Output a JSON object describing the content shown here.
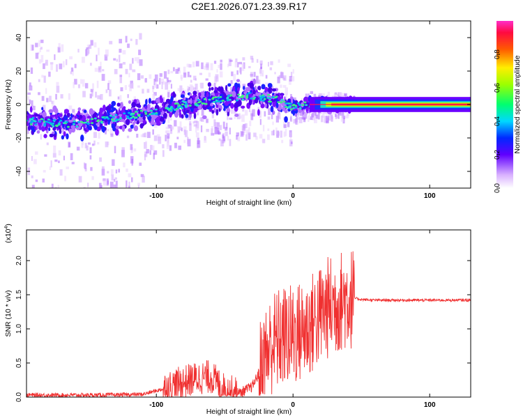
{
  "title": "C2E1.2026.071.23.39.R17",
  "chart_data": [
    {
      "type": "heatmap",
      "name": "spectrogram",
      "xlabel": "Height of straight line (km)",
      "ylabel": "Frequency (Hz)",
      "xlim": [
        -195,
        130
      ],
      "ylim": [
        -50,
        50
      ],
      "xticks": [
        -100,
        0,
        100
      ],
      "yticks": [
        -40,
        -20,
        0,
        20,
        40
      ],
      "colorbar": {
        "label": "Normalized spectral amplitude",
        "range": [
          0,
          1
        ],
        "ticks": [
          0.0,
          0.2,
          0.4,
          0.6,
          0.8
        ]
      },
      "description_series": {
        "name": "dominant frequency trend",
        "x": [
          -190,
          -160,
          -130,
          -100,
          -80,
          -65,
          -50,
          -30,
          -10,
          0,
          10,
          20,
          40,
          60,
          80,
          100,
          130
        ],
        "y": [
          -10,
          -12,
          -8,
          -4,
          0,
          2,
          4,
          5,
          3,
          -2,
          0,
          0,
          0,
          0,
          0,
          0,
          0
        ]
      }
    },
    {
      "type": "line",
      "name": "snr",
      "xlabel": "Height of straight line (km)",
      "ylabel": "SNR (10 * v/v)",
      "y_multiplier": "(x10",
      "y_multiplier_exp": "4",
      "y_multiplier_close": ")",
      "xlim": [
        -195,
        130
      ],
      "ylim": [
        0,
        2.45
      ],
      "xticks": [
        -100,
        0,
        100
      ],
      "yticks": [
        0.0,
        0.5,
        1.0,
        1.5,
        2.0
      ],
      "series": [
        {
          "name": "SNR",
          "color": "#f03030",
          "x": [
            -195,
            -170,
            -140,
            -110,
            -95,
            -80,
            -70,
            -60,
            -50,
            -40,
            -30,
            -25,
            -20,
            -15,
            -10,
            -5,
            0,
            5,
            10,
            15,
            20,
            25,
            30,
            35,
            40,
            45,
            50,
            60,
            80,
            100,
            130
          ],
          "y": [
            0.03,
            0.03,
            0.03,
            0.04,
            0.12,
            0.22,
            0.28,
            0.3,
            0.1,
            0.05,
            0.15,
            0.35,
            0.6,
            0.8,
            0.85,
            0.9,
            0.9,
            0.95,
            1.0,
            1.1,
            1.2,
            1.3,
            1.35,
            1.4,
            1.45,
            1.45,
            1.43,
            1.42,
            1.42,
            1.42,
            1.42
          ]
        }
      ]
    }
  ]
}
